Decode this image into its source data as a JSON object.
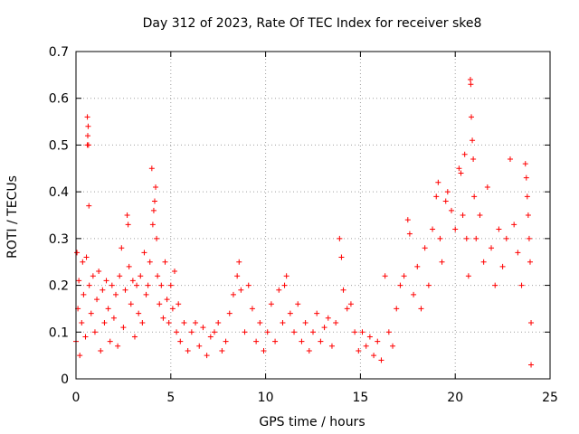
{
  "chart_data": {
    "type": "scatter",
    "title": "Day 312 of 2023, Rate Of TEC Index for receiver ske8",
    "xlabel": "GPS time / hours",
    "ylabel": "ROTI / TECUs",
    "xlim": [
      0,
      25
    ],
    "ylim": [
      0,
      0.7
    ],
    "xticks": [
      "0",
      "5",
      "10",
      "15",
      "20",
      "25"
    ],
    "yticks": [
      "0",
      "0.1",
      "0.2",
      "0.3",
      "0.4",
      "0.5",
      "0.6",
      "0.7"
    ],
    "grid": true,
    "marker": "plus",
    "color": "#ff0000",
    "series": [
      {
        "points": [
          [
            0.0,
            0.08
          ],
          [
            0.05,
            0.27
          ],
          [
            0.1,
            0.15
          ],
          [
            0.15,
            0.21
          ],
          [
            0.2,
            0.05
          ],
          [
            0.3,
            0.12
          ],
          [
            0.35,
            0.25
          ],
          [
            0.4,
            0.18
          ],
          [
            0.5,
            0.09
          ],
          [
            0.55,
            0.26
          ],
          [
            0.6,
            0.5
          ],
          [
            0.6,
            0.56
          ],
          [
            0.62,
            0.52
          ],
          [
            0.64,
            0.54
          ],
          [
            0.66,
            0.5
          ],
          [
            0.68,
            0.37
          ],
          [
            0.7,
            0.2
          ],
          [
            0.8,
            0.14
          ],
          [
            0.9,
            0.22
          ],
          [
            1.0,
            0.1
          ],
          [
            1.1,
            0.17
          ],
          [
            1.2,
            0.23
          ],
          [
            1.3,
            0.06
          ],
          [
            1.4,
            0.19
          ],
          [
            1.5,
            0.12
          ],
          [
            1.6,
            0.21
          ],
          [
            1.7,
            0.15
          ],
          [
            1.8,
            0.08
          ],
          [
            1.9,
            0.2
          ],
          [
            2.0,
            0.13
          ],
          [
            2.1,
            0.18
          ],
          [
            2.2,
            0.07
          ],
          [
            2.3,
            0.22
          ],
          [
            2.4,
            0.28
          ],
          [
            2.5,
            0.11
          ],
          [
            2.6,
            0.19
          ],
          [
            2.7,
            0.35
          ],
          [
            2.75,
            0.33
          ],
          [
            2.8,
            0.24
          ],
          [
            2.9,
            0.16
          ],
          [
            3.0,
            0.21
          ],
          [
            3.1,
            0.09
          ],
          [
            3.2,
            0.2
          ],
          [
            3.3,
            0.14
          ],
          [
            3.4,
            0.22
          ],
          [
            3.5,
            0.12
          ],
          [
            3.6,
            0.27
          ],
          [
            3.7,
            0.18
          ],
          [
            3.8,
            0.2
          ],
          [
            3.9,
            0.25
          ],
          [
            4.0,
            0.45
          ],
          [
            4.05,
            0.33
          ],
          [
            4.1,
            0.36
          ],
          [
            4.15,
            0.38
          ],
          [
            4.2,
            0.41
          ],
          [
            4.25,
            0.3
          ],
          [
            4.3,
            0.22
          ],
          [
            4.4,
            0.16
          ],
          [
            4.5,
            0.2
          ],
          [
            4.6,
            0.13
          ],
          [
            4.7,
            0.25
          ],
          [
            4.8,
            0.17
          ],
          [
            4.9,
            0.12
          ],
          [
            5.0,
            0.2
          ],
          [
            5.1,
            0.15
          ],
          [
            5.2,
            0.23
          ],
          [
            5.3,
            0.1
          ],
          [
            5.4,
            0.16
          ],
          [
            5.5,
            0.08
          ],
          [
            5.7,
            0.12
          ],
          [
            5.9,
            0.06
          ],
          [
            6.1,
            0.1
          ],
          [
            6.3,
            0.12
          ],
          [
            6.5,
            0.07
          ],
          [
            6.7,
            0.11
          ],
          [
            6.9,
            0.05
          ],
          [
            7.1,
            0.09
          ],
          [
            7.3,
            0.1
          ],
          [
            7.5,
            0.12
          ],
          [
            7.7,
            0.06
          ],
          [
            7.9,
            0.08
          ],
          [
            8.1,
            0.14
          ],
          [
            8.3,
            0.18
          ],
          [
            8.5,
            0.22
          ],
          [
            8.6,
            0.25
          ],
          [
            8.7,
            0.19
          ],
          [
            8.9,
            0.1
          ],
          [
            9.1,
            0.2
          ],
          [
            9.3,
            0.15
          ],
          [
            9.5,
            0.08
          ],
          [
            9.7,
            0.12
          ],
          [
            9.9,
            0.06
          ],
          [
            10.1,
            0.1
          ],
          [
            10.3,
            0.16
          ],
          [
            10.5,
            0.08
          ],
          [
            10.7,
            0.19
          ],
          [
            10.9,
            0.12
          ],
          [
            11.0,
            0.2
          ],
          [
            11.1,
            0.22
          ],
          [
            11.3,
            0.14
          ],
          [
            11.5,
            0.1
          ],
          [
            11.7,
            0.16
          ],
          [
            11.9,
            0.08
          ],
          [
            12.1,
            0.12
          ],
          [
            12.3,
            0.06
          ],
          [
            12.5,
            0.1
          ],
          [
            12.7,
            0.14
          ],
          [
            12.9,
            0.08
          ],
          [
            13.1,
            0.11
          ],
          [
            13.3,
            0.13
          ],
          [
            13.5,
            0.07
          ],
          [
            13.7,
            0.12
          ],
          [
            13.9,
            0.3
          ],
          [
            14.0,
            0.26
          ],
          [
            14.1,
            0.19
          ],
          [
            14.3,
            0.15
          ],
          [
            14.5,
            0.16
          ],
          [
            14.7,
            0.1
          ],
          [
            14.9,
            0.06
          ],
          [
            15.1,
            0.1
          ],
          [
            15.3,
            0.07
          ],
          [
            15.5,
            0.09
          ],
          [
            15.7,
            0.05
          ],
          [
            15.9,
            0.08
          ],
          [
            16.1,
            0.04
          ],
          [
            16.3,
            0.22
          ],
          [
            16.5,
            0.1
          ],
          [
            16.7,
            0.07
          ],
          [
            16.9,
            0.15
          ],
          [
            17.1,
            0.2
          ],
          [
            17.3,
            0.22
          ],
          [
            17.5,
            0.34
          ],
          [
            17.6,
            0.31
          ],
          [
            17.8,
            0.18
          ],
          [
            18.0,
            0.24
          ],
          [
            18.2,
            0.15
          ],
          [
            18.4,
            0.28
          ],
          [
            18.6,
            0.2
          ],
          [
            18.8,
            0.32
          ],
          [
            19.0,
            0.39
          ],
          [
            19.1,
            0.42
          ],
          [
            19.2,
            0.3
          ],
          [
            19.3,
            0.25
          ],
          [
            19.5,
            0.38
          ],
          [
            19.6,
            0.4
          ],
          [
            19.8,
            0.36
          ],
          [
            20.0,
            0.32
          ],
          [
            20.2,
            0.45
          ],
          [
            20.3,
            0.44
          ],
          [
            20.4,
            0.35
          ],
          [
            20.5,
            0.48
          ],
          [
            20.6,
            0.3
          ],
          [
            20.7,
            0.22
          ],
          [
            20.8,
            0.64
          ],
          [
            20.82,
            0.63
          ],
          [
            20.85,
            0.56
          ],
          [
            20.9,
            0.51
          ],
          [
            20.95,
            0.47
          ],
          [
            21.0,
            0.39
          ],
          [
            21.1,
            0.3
          ],
          [
            21.3,
            0.35
          ],
          [
            21.5,
            0.25
          ],
          [
            21.7,
            0.41
          ],
          [
            21.9,
            0.28
          ],
          [
            22.1,
            0.2
          ],
          [
            22.3,
            0.32
          ],
          [
            22.5,
            0.24
          ],
          [
            22.7,
            0.3
          ],
          [
            22.9,
            0.47
          ],
          [
            23.1,
            0.33
          ],
          [
            23.3,
            0.27
          ],
          [
            23.5,
            0.2
          ],
          [
            23.7,
            0.46
          ],
          [
            23.75,
            0.43
          ],
          [
            23.8,
            0.39
          ],
          [
            23.85,
            0.35
          ],
          [
            23.9,
            0.3
          ],
          [
            23.95,
            0.25
          ],
          [
            24.0,
            0.12
          ],
          [
            24.0,
            0.03
          ]
        ]
      }
    ]
  }
}
